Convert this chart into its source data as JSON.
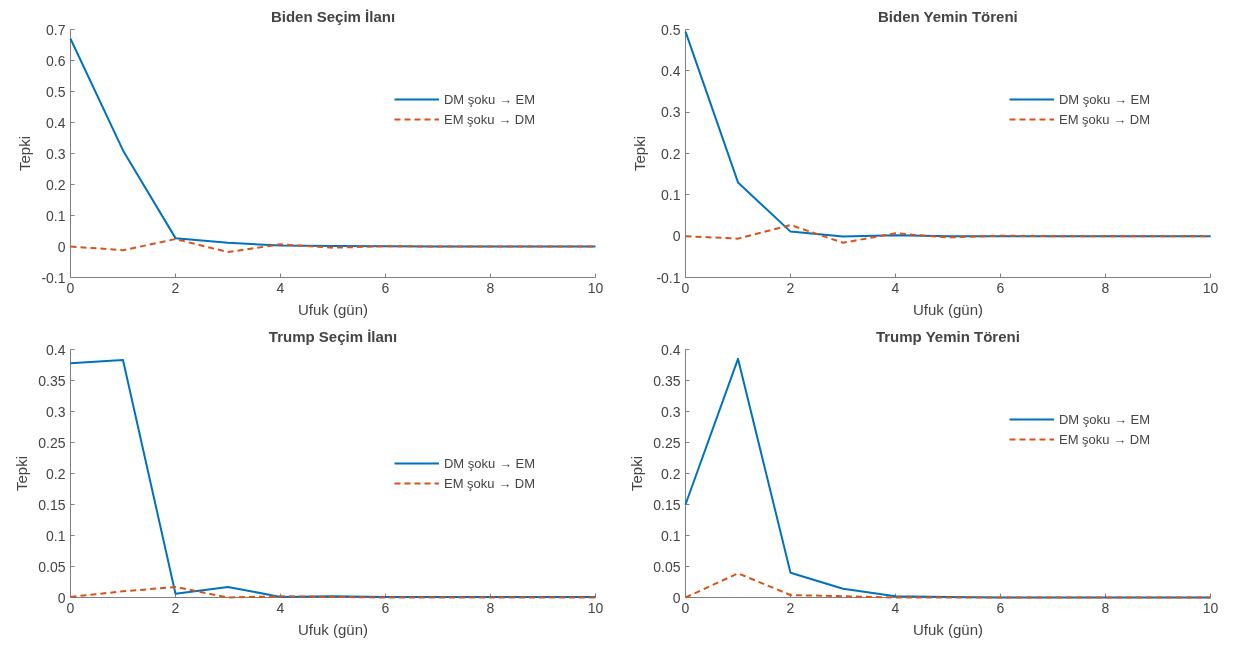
{
  "chart_data": [
    {
      "type": "line",
      "title": "Biden Seçim İlanı",
      "xlabel": "Ufuk (gün)",
      "ylabel": "Tepki",
      "x": [
        0,
        1,
        2,
        3,
        4,
        5,
        6,
        7,
        8,
        9,
        10
      ],
      "xlim": [
        0,
        10
      ],
      "xticks": [
        0,
        2,
        4,
        6,
        8,
        10
      ],
      "ylim": [
        -0.1,
        0.7
      ],
      "yticks": [
        -0.1,
        0,
        0.1,
        0.2,
        0.3,
        0.4,
        0.5,
        0.6,
        0.7
      ],
      "grid": false,
      "legend": "top right",
      "series": [
        {
          "name": "DM şoku → EM",
          "color": "#0072bd",
          "line_style": "solid",
          "values": [
            0.67,
            0.31,
            0.027,
            0.012,
            0.003,
            0.002,
            0.001,
            0,
            0,
            0,
            0
          ]
        },
        {
          "name": "EM şoku → DM",
          "color": "#d95319",
          "line_style": "dashed",
          "values": [
            0,
            -0.012,
            0.024,
            -0.018,
            0.007,
            -0.004,
            0.001,
            0,
            0,
            0,
            0
          ]
        }
      ]
    },
    {
      "type": "line",
      "title": "Biden Yemin Töreni",
      "xlabel": "Ufuk (gün)",
      "ylabel": "Tepki",
      "x": [
        0,
        1,
        2,
        3,
        4,
        5,
        6,
        7,
        8,
        9,
        10
      ],
      "xlim": [
        0,
        10
      ],
      "xticks": [
        0,
        2,
        4,
        6,
        8,
        10
      ],
      "ylim": [
        -0.1,
        0.5
      ],
      "yticks": [
        -0.1,
        0,
        0.1,
        0.2,
        0.3,
        0.4,
        0.5
      ],
      "grid": false,
      "legend": "top right",
      "series": [
        {
          "name": "DM şoku → EM",
          "color": "#0072bd",
          "line_style": "solid",
          "values": [
            0.495,
            0.13,
            0.011,
            -0.001,
            0.002,
            0,
            0,
            0,
            0,
            0,
            0
          ]
        },
        {
          "name": "EM şoku → DM",
          "color": "#d95319",
          "line_style": "dashed",
          "values": [
            0,
            -0.006,
            0.027,
            -0.016,
            0.007,
            -0.003,
            0.001,
            0,
            0,
            0,
            0
          ]
        }
      ]
    },
    {
      "type": "line",
      "title": "Trump Seçim İlanı",
      "xlabel": "Ufuk (gün)",
      "ylabel": "Tepki",
      "x": [
        0,
        1,
        2,
        3,
        4,
        5,
        6,
        7,
        8,
        9,
        10
      ],
      "xlim": [
        0,
        10
      ],
      "xticks": [
        0,
        2,
        4,
        6,
        8,
        10
      ],
      "ylim": [
        0,
        0.4
      ],
      "yticks": [
        0,
        0.05,
        0.1,
        0.15,
        0.2,
        0.25,
        0.3,
        0.35,
        0.4
      ],
      "grid": false,
      "legend": "right",
      "series": [
        {
          "name": "DM şoku → EM",
          "color": "#0072bd",
          "line_style": "solid",
          "values": [
            0.378,
            0.383,
            0.006,
            0.017,
            0.001,
            0.002,
            0.001,
            0.001,
            0.001,
            0.001,
            0.001
          ]
        },
        {
          "name": "EM şoku → DM",
          "color": "#d95319",
          "line_style": "dashed",
          "values": [
            0.001,
            0.01,
            0.017,
            0,
            0.002,
            0.001,
            0,
            0,
            0,
            0,
            0
          ]
        }
      ]
    },
    {
      "type": "line",
      "title": "Trump Yemin Töreni",
      "xlabel": "Ufuk (gün)",
      "ylabel": "Tepki",
      "x": [
        0,
        1,
        2,
        3,
        4,
        5,
        6,
        7,
        8,
        9,
        10
      ],
      "xlim": [
        0,
        10
      ],
      "xticks": [
        0,
        2,
        4,
        6,
        8,
        10
      ],
      "ylim": [
        0,
        0.4
      ],
      "yticks": [
        0,
        0.05,
        0.1,
        0.15,
        0.2,
        0.25,
        0.3,
        0.35,
        0.4
      ],
      "grid": false,
      "legend": "top right",
      "series": [
        {
          "name": "DM şoku → EM",
          "color": "#0072bd",
          "line_style": "solid",
          "values": [
            0.15,
            0.385,
            0.04,
            0.014,
            0.002,
            0.001,
            0,
            0,
            0,
            0,
            0
          ]
        },
        {
          "name": "EM şoku → DM",
          "color": "#d95319",
          "line_style": "dashed",
          "values": [
            0,
            0.039,
            0.004,
            0.002,
            0,
            0,
            0,
            0,
            0,
            0,
            0
          ]
        }
      ]
    }
  ]
}
